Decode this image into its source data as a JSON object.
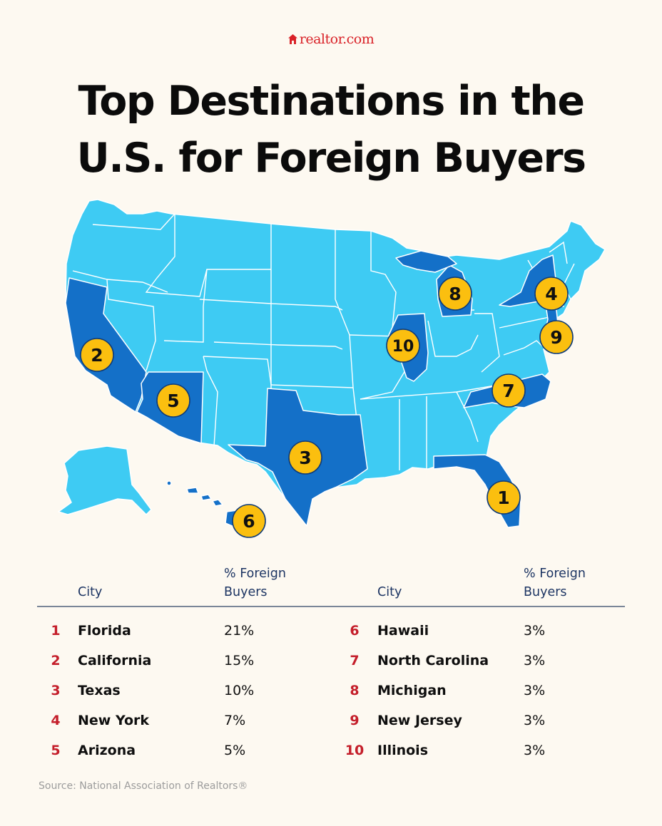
{
  "logo": {
    "text": "realtor.com",
    "icon": "house-icon"
  },
  "title": {
    "line1": "Top Destinations in the",
    "line2": "U.S. for Foreign Buyers"
  },
  "map": {
    "colors": {
      "highlight": "#1470c8",
      "base": "#3ecbf3",
      "badge": "#fbbf0f"
    },
    "badges": [
      {
        "rank": "1",
        "state": "Florida"
      },
      {
        "rank": "2",
        "state": "California"
      },
      {
        "rank": "3",
        "state": "Texas"
      },
      {
        "rank": "4",
        "state": "New York"
      },
      {
        "rank": "5",
        "state": "Arizona"
      },
      {
        "rank": "6",
        "state": "Hawaii"
      },
      {
        "rank": "7",
        "state": "North Carolina"
      },
      {
        "rank": "8",
        "state": "Michigan"
      },
      {
        "rank": "9",
        "state": "New Jersey"
      },
      {
        "rank": "10",
        "state": "Illinois"
      }
    ]
  },
  "table": {
    "headers": {
      "city": "City",
      "pct_line1": "% Foreign",
      "pct_line2": "Buyers"
    },
    "left": [
      {
        "rank": "1",
        "city": "Florida",
        "pct": "21%"
      },
      {
        "rank": "2",
        "city": "California",
        "pct": "15%"
      },
      {
        "rank": "3",
        "city": "Texas",
        "pct": "10%"
      },
      {
        "rank": "4",
        "city": "New York",
        "pct": "7%"
      },
      {
        "rank": "5",
        "city": "Arizona",
        "pct": "5%"
      }
    ],
    "right": [
      {
        "rank": "6",
        "city": "Hawaii",
        "pct": "3%"
      },
      {
        "rank": "7",
        "city": "North Carolina",
        "pct": "3%"
      },
      {
        "rank": "8",
        "city": "Michigan",
        "pct": "3%"
      },
      {
        "rank": "9",
        "city": "New Jersey",
        "pct": "3%"
      },
      {
        "rank": "10",
        "city": "Illinois",
        "pct": "3%"
      }
    ]
  },
  "source": "Source:  National Association of Realtors®"
}
